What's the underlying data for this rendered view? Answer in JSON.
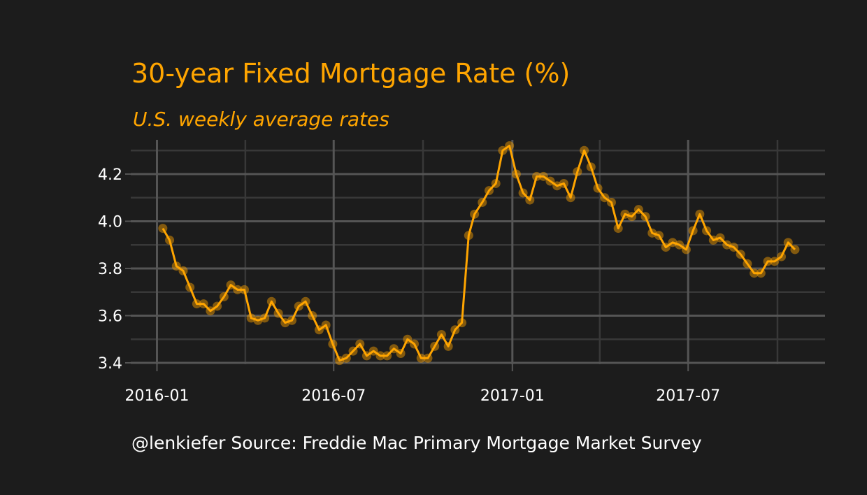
{
  "chart_data": {
    "type": "line",
    "title": "30-year Fixed Mortgage Rate (%)",
    "subtitle": "U.S. weekly average rates",
    "caption": "@lenkiefer Source: Freddie Mac Primary Mortgage Market Survey",
    "x": [
      "2016-01-07",
      "2016-01-14",
      "2016-01-21",
      "2016-01-28",
      "2016-02-04",
      "2016-02-11",
      "2016-02-18",
      "2016-02-25",
      "2016-03-03",
      "2016-03-10",
      "2016-03-17",
      "2016-03-24",
      "2016-03-31",
      "2016-04-07",
      "2016-04-14",
      "2016-04-21",
      "2016-04-28",
      "2016-05-05",
      "2016-05-12",
      "2016-05-19",
      "2016-05-26",
      "2016-06-02",
      "2016-06-09",
      "2016-06-16",
      "2016-06-23",
      "2016-06-30",
      "2016-07-07",
      "2016-07-14",
      "2016-07-21",
      "2016-07-28",
      "2016-08-04",
      "2016-08-11",
      "2016-08-18",
      "2016-08-25",
      "2016-09-01",
      "2016-09-08",
      "2016-09-15",
      "2016-09-22",
      "2016-09-29",
      "2016-10-06",
      "2016-10-13",
      "2016-10-20",
      "2016-10-27",
      "2016-11-03",
      "2016-11-10",
      "2016-11-17",
      "2016-11-23",
      "2016-12-01",
      "2016-12-08",
      "2016-12-15",
      "2016-12-22",
      "2016-12-29",
      "2017-01-05",
      "2017-01-12",
      "2017-01-19",
      "2017-01-26",
      "2017-02-02",
      "2017-02-09",
      "2017-02-16",
      "2017-02-23",
      "2017-03-02",
      "2017-03-09",
      "2017-03-16",
      "2017-03-23",
      "2017-03-30",
      "2017-04-06",
      "2017-04-13",
      "2017-04-20",
      "2017-04-27",
      "2017-05-04",
      "2017-05-11",
      "2017-05-18",
      "2017-05-25",
      "2017-06-01",
      "2017-06-08",
      "2017-06-15",
      "2017-06-22",
      "2017-06-29",
      "2017-07-06",
      "2017-07-13",
      "2017-07-20",
      "2017-07-27",
      "2017-08-03",
      "2017-08-10",
      "2017-08-17",
      "2017-08-24",
      "2017-08-31",
      "2017-09-07",
      "2017-09-14",
      "2017-09-21",
      "2017-09-28",
      "2017-10-05",
      "2017-10-12",
      "2017-10-19"
    ],
    "series": [
      {
        "color": "#ffa500",
        "values": [
          3.97,
          3.92,
          3.81,
          3.79,
          3.72,
          3.65,
          3.65,
          3.62,
          3.64,
          3.68,
          3.73,
          3.71,
          3.71,
          3.59,
          3.58,
          3.59,
          3.66,
          3.61,
          3.57,
          3.58,
          3.64,
          3.66,
          3.6,
          3.54,
          3.56,
          3.48,
          3.41,
          3.42,
          3.45,
          3.48,
          3.43,
          3.45,
          3.43,
          3.43,
          3.46,
          3.44,
          3.5,
          3.48,
          3.42,
          3.42,
          3.47,
          3.52,
          3.47,
          3.54,
          3.57,
          3.94,
          4.03,
          4.08,
          4.13,
          4.16,
          4.3,
          4.32,
          4.2,
          4.12,
          4.09,
          4.19,
          4.19,
          4.17,
          4.15,
          4.16,
          4.1,
          4.21,
          4.3,
          4.23,
          4.14,
          4.1,
          4.08,
          3.97,
          4.03,
          4.02,
          4.05,
          4.02,
          3.95,
          3.94,
          3.89,
          3.91,
          3.9,
          3.88,
          3.96,
          4.03,
          3.96,
          3.92,
          3.93,
          3.9,
          3.89,
          3.86,
          3.82,
          3.78,
          3.78,
          3.83,
          3.83,
          3.85,
          3.91,
          3.88
        ]
      }
    ],
    "xlim": [
      "2015-12-05",
      "2017-11-19"
    ],
    "xticks": [
      {
        "value": "2016-01-01",
        "label": "2016-01"
      },
      {
        "value": "2016-07-01",
        "label": "2016-07"
      },
      {
        "value": "2017-01-01",
        "label": "2017-01"
      },
      {
        "value": "2017-07-01",
        "label": "2017-07"
      }
    ],
    "x_minor_ticks": [
      "2016-04-01",
      "2016-10-01",
      "2017-04-01",
      "2017-10-01"
    ],
    "ylim": [
      3.394,
      4.345
    ],
    "yticks": [
      {
        "value": 3.4,
        "label": "3.4"
      },
      {
        "value": 3.6,
        "label": "3.6"
      },
      {
        "value": 3.8,
        "label": "3.8"
      },
      {
        "value": 4.0,
        "label": "4.0"
      },
      {
        "value": 4.2,
        "label": "4.2"
      }
    ],
    "y_minor_ticks": [
      3.5,
      3.7,
      3.9,
      4.1,
      4.3
    ],
    "grid": true
  }
}
